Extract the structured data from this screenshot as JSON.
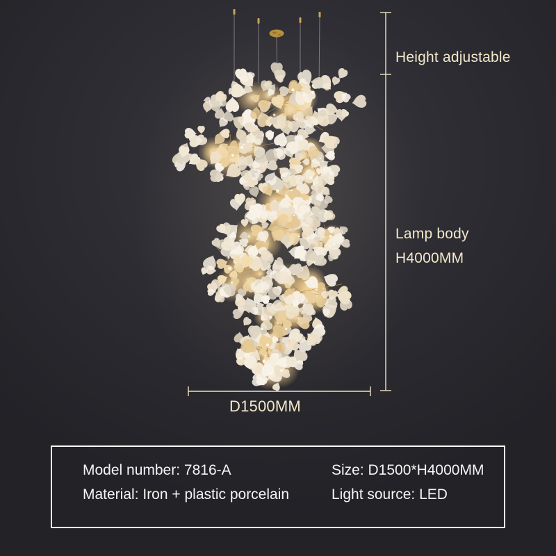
{
  "product": {
    "annotations": {
      "height_adjustable": "Height adjustable",
      "lamp_body_line1": "Lamp body",
      "lamp_body_line2": "H4000MM",
      "diameter": "D1500MM"
    },
    "specs": {
      "model": "Model number: 7816-A",
      "size": "Size: D1500*H4000MM",
      "material": "Material: Iron + plastic porcelain",
      "light_source": "Light source: LED"
    },
    "colors": {
      "annotation_text": "#f2e8cb",
      "dimension_line": "#efe5c4",
      "spec_text": "#f4f4f4",
      "spec_border": "#ffffff",
      "canopy_gold": "#b8903f",
      "wire_gray": "#7d7d82",
      "leaf_cream": "#f2e8d6",
      "glow_warm": "#ffe3ae"
    }
  }
}
